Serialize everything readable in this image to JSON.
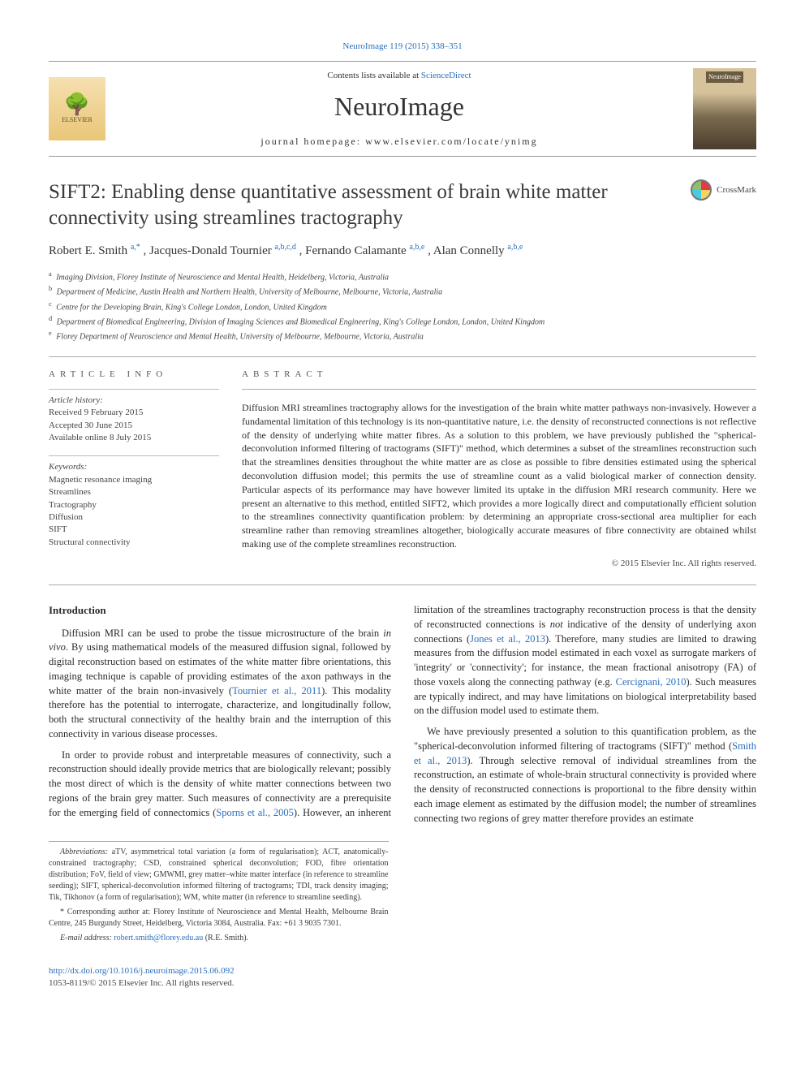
{
  "header": {
    "citation": "NeuroImage 119 (2015) 338–351",
    "contents_prefix": "Contents lists available at ",
    "contents_link": "ScienceDirect",
    "journal": "NeuroImage",
    "homepage_label": "journal homepage: ",
    "homepage_url": "www.elsevier.com/locate/ynimg",
    "publisher": "ELSEVIER",
    "cover_label": "NeuroImage"
  },
  "crossmark": "CrossMark",
  "title": "SIFT2: Enabling dense quantitative assessment of brain white matter connectivity using streamlines tractography",
  "authors": [
    {
      "name": "Robert E. Smith ",
      "sup": "a,*"
    },
    {
      "name": ", Jacques-Donald Tournier ",
      "sup": "a,b,c,d"
    },
    {
      "name": ", Fernando Calamante ",
      "sup": "a,b,e"
    },
    {
      "name": ", Alan Connelly ",
      "sup": "a,b,e"
    }
  ],
  "affiliations": [
    {
      "tag": "a",
      "text": " Imaging Division, Florey Institute of Neuroscience and Mental Health, Heidelberg, Victoria, Australia"
    },
    {
      "tag": "b",
      "text": " Department of Medicine, Austin Health and Northern Health, University of Melbourne, Melbourne, Victoria, Australia"
    },
    {
      "tag": "c",
      "text": " Centre for the Developing Brain, King's College London, London, United Kingdom"
    },
    {
      "tag": "d",
      "text": " Department of Biomedical Engineering, Division of Imaging Sciences and Biomedical Engineering, King's College London, London, United Kingdom"
    },
    {
      "tag": "e",
      "text": " Florey Department of Neuroscience and Mental Health, University of Melbourne, Melbourne, Victoria, Australia"
    }
  ],
  "article_info_label": "ARTICLE INFO",
  "abstract_label": "ABSTRACT",
  "history": {
    "label": "Article history:",
    "received": "Received 9 February 2015",
    "accepted": "Accepted 30 June 2015",
    "online": "Available online 8 July 2015"
  },
  "keywords": {
    "label": "Keywords:",
    "items": [
      "Magnetic resonance imaging",
      "Streamlines",
      "Tractography",
      "Diffusion",
      "SIFT",
      "Structural connectivity"
    ]
  },
  "abstract_text": "Diffusion MRI streamlines tractography allows for the investigation of the brain white matter pathways non-invasively. However a fundamental limitation of this technology is its non-quantitative nature, i.e. the density of reconstructed connections is not reflective of the density of underlying white matter fibres. As a solution to this problem, we have previously published the \"spherical-deconvolution informed filtering of tractograms (SIFT)\" method, which determines a subset of the streamlines reconstruction such that the streamlines densities throughout the white matter are as close as possible to fibre densities estimated using the spherical deconvolution diffusion model; this permits the use of streamline count as a valid biological marker of connection density. Particular aspects of its performance may have however limited its uptake in the diffusion MRI research community. Here we present an alternative to this method, entitled SIFT2, which provides a more logically direct and computationally efficient solution to the streamlines connectivity quantification problem: by determining an appropriate cross-sectional area multiplier for each streamline rather than removing streamlines altogether, biologically accurate measures of fibre connectivity are obtained whilst making use of the complete streamlines reconstruction.",
  "copyright": "© 2015 Elsevier Inc. All rights reserved.",
  "intro_heading": "Introduction",
  "intro_p1a": "Diffusion MRI can be used to probe the tissue microstructure of the brain ",
  "intro_p1b": "in vivo",
  "intro_p1c": ". By using mathematical models of the measured diffusion signal, followed by digital reconstruction based on estimates of the white matter fibre orientations, this imaging technique is capable of providing estimates of the axon pathways in the white matter of the brain non-invasively (",
  "intro_p1_ref1": "Tournier et al., 2011",
  "intro_p1d": "). This modality therefore has the potential to interrogate, characterize, and longitudinally follow, both the structural connectivity of the healthy brain and the interruption of this connectivity in various disease processes.",
  "intro_p2a": "In order to provide robust and interpretable measures of connectivity, such a reconstruction should ideally provide metrics that are biologically relevant; possibly the most direct of which is the density of white matter connections between two regions of the brain grey matter. Such measures of connectivity are a prerequisite for the emerging field of connectomics (",
  "intro_p2_ref1": "Sporns et al., 2005",
  "intro_p2b": "). However, an inherent limitation of the streamlines tractography reconstruction process is that the density of reconstructed connections is ",
  "intro_p2_not": "not",
  "intro_p2c": " indicative of the density of underlying axon connections (",
  "intro_p2_ref2": "Jones et al., 2013",
  "intro_p2d": "). Therefore, many studies are limited to drawing measures from the diffusion model estimated in each voxel as surrogate markers of 'integrity' or 'connectivity'; for instance, the mean fractional anisotropy (FA) of those voxels along the connecting pathway (e.g. ",
  "intro_p2_ref3": "Cercignani, 2010",
  "intro_p2e": "). Such measures are typically indirect, and may have limitations on biological interpretability based on the diffusion model used to estimate them.",
  "intro_p3a": "We have previously presented a solution to this quantification problem, as the \"spherical-deconvolution informed filtering of tractograms (SIFT)\" method (",
  "intro_p3_ref1": "Smith et al., 2013",
  "intro_p3b": "). Through selective removal of individual streamlines from the reconstruction, an estimate of whole-brain structural connectivity is provided where the density of reconstructed connections is proportional to the fibre density within each image element as estimated by the diffusion model; the number of streamlines connecting two regions of grey matter therefore provides an estimate",
  "footnotes": {
    "abbrev_label": "Abbreviations:",
    "abbrev_text": " aTV, asymmetrical total variation (a form of regularisation); ACT, anatomically-constrained tractography; CSD, constrained spherical deconvolution; FOD, fibre orientation distribution; FoV, field of view; GMWMI, grey matter–white matter interface (in reference to streamline seeding); SIFT, spherical-deconvolution informed filtering of tractograms; TDI, track density imaging; Tik, Tikhonov (a form of regularisation); WM, white matter (in reference to streamline seeding).",
    "corr_marker": "*",
    "corr_text": " Corresponding author at: Florey Institute of Neuroscience and Mental Health, Melbourne Brain Centre, 245 Burgundy Street, Heidelberg, Victoria 3084, Australia. Fax: +61 3 9035 7301.",
    "email_label": "E-mail address: ",
    "email": "robert.smith@florey.edu.au",
    "email_suffix": " (R.E. Smith)."
  },
  "footer": {
    "doi": "http://dx.doi.org/10.1016/j.neuroimage.2015.06.092",
    "issn_line": "1053-8119/© 2015 Elsevier Inc. All rights reserved."
  },
  "colors": {
    "link": "#2a6ebb",
    "text": "#333333",
    "rule": "#aaaaaa"
  }
}
